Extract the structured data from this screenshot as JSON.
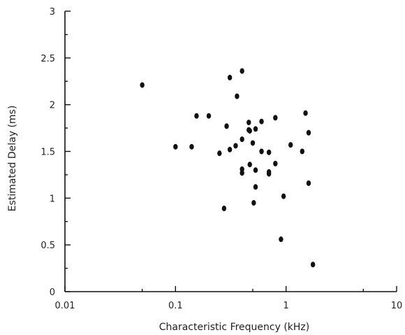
{
  "chart_data": {
    "type": "scatter",
    "xlabel": "Characteristic Frequency (kHz)",
    "ylabel": "Estimated Delay (ms)",
    "xscale": "log",
    "xlim": [
      0.01,
      10
    ],
    "ylim": [
      0,
      3
    ],
    "grid": false,
    "x_ticks": [
      0.01,
      0.1,
      1,
      10
    ],
    "x_tick_labels": [
      "0.01",
      "0.1",
      "1",
      "10"
    ],
    "y_ticks": [
      0,
      0.5,
      1,
      1.5,
      2,
      2.5,
      3
    ],
    "y_tick_labels": [
      "0",
      "0.5",
      "1",
      "1.5",
      "2",
      "2.5",
      "3"
    ],
    "marker_color": "#111111",
    "points": [
      {
        "x": 0.05,
        "y": 2.21
      },
      {
        "x": 0.1,
        "y": 1.55
      },
      {
        "x": 0.14,
        "y": 1.55
      },
      {
        "x": 0.155,
        "y": 1.88
      },
      {
        "x": 0.2,
        "y": 1.88
      },
      {
        "x": 0.25,
        "y": 1.48
      },
      {
        "x": 0.275,
        "y": 0.89
      },
      {
        "x": 0.29,
        "y": 1.77
      },
      {
        "x": 0.31,
        "y": 2.29
      },
      {
        "x": 0.31,
        "y": 1.52
      },
      {
        "x": 0.35,
        "y": 1.56
      },
      {
        "x": 0.36,
        "y": 2.09
      },
      {
        "x": 0.4,
        "y": 2.36
      },
      {
        "x": 0.4,
        "y": 1.63
      },
      {
        "x": 0.4,
        "y": 1.31
      },
      {
        "x": 0.4,
        "y": 1.27
      },
      {
        "x": 0.46,
        "y": 1.81
      },
      {
        "x": 0.46,
        "y": 1.73
      },
      {
        "x": 0.47,
        "y": 1.72
      },
      {
        "x": 0.47,
        "y": 1.36
      },
      {
        "x": 0.5,
        "y": 1.59
      },
      {
        "x": 0.51,
        "y": 0.95
      },
      {
        "x": 0.53,
        "y": 1.74
      },
      {
        "x": 0.53,
        "y": 1.3
      },
      {
        "x": 0.53,
        "y": 1.12
      },
      {
        "x": 0.6,
        "y": 1.82
      },
      {
        "x": 0.6,
        "y": 1.5
      },
      {
        "x": 0.7,
        "y": 1.49
      },
      {
        "x": 0.7,
        "y": 1.28
      },
      {
        "x": 0.7,
        "y": 1.26
      },
      {
        "x": 0.8,
        "y": 1.86
      },
      {
        "x": 0.8,
        "y": 1.37
      },
      {
        "x": 0.9,
        "y": 0.56
      },
      {
        "x": 0.95,
        "y": 1.02
      },
      {
        "x": 1.1,
        "y": 1.57
      },
      {
        "x": 1.4,
        "y": 1.5
      },
      {
        "x": 1.5,
        "y": 1.91
      },
      {
        "x": 1.6,
        "y": 1.7
      },
      {
        "x": 1.6,
        "y": 1.16
      },
      {
        "x": 1.75,
        "y": 0.29
      }
    ]
  }
}
